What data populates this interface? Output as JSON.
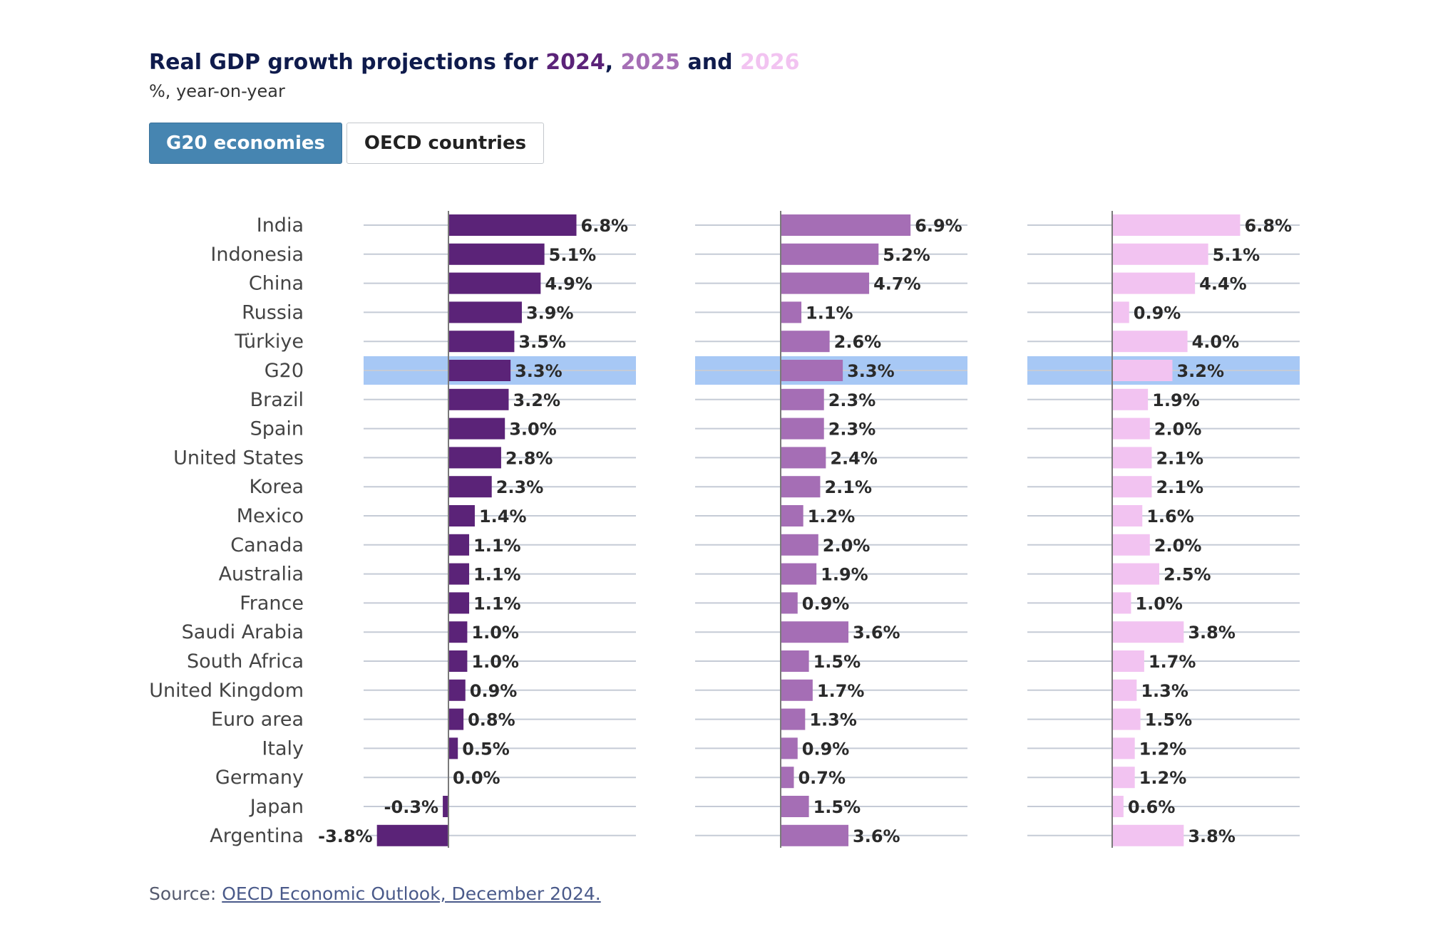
{
  "header": {
    "title_prefix": "Real GDP growth projections for ",
    "year1": "2024",
    "sep1": ", ",
    "year2": "2025",
    "sep2": " and ",
    "year3": "2026",
    "subtitle": "%, year-on-year"
  },
  "tabs": [
    {
      "label": "G20 economies",
      "active": true
    },
    {
      "label": "OECD countries",
      "active": false
    }
  ],
  "colors": {
    "title": "#0f1b4c",
    "year2024": "#5b2378",
    "year2025": "#a56eb5",
    "year2026": "#f2c3f1",
    "highlight": "#a7c8f5",
    "active_tab": "#4685b1"
  },
  "source": {
    "prefix": "Source: ",
    "link_text": "OECD Economic Outlook, December 2024."
  },
  "chart_data": {
    "type": "bar",
    "orientation": "horizontal",
    "highlighted_category": "G20",
    "value_suffix": "%",
    "categories": [
      "India",
      "Indonesia",
      "China",
      "Russia",
      "Türkiye",
      "G20",
      "Brazil",
      "Spain",
      "United States",
      "Korea",
      "Mexico",
      "Canada",
      "Australia",
      "France",
      "Saudi Arabia",
      "South Africa",
      "United Kingdom",
      "Euro area",
      "Italy",
      "Germany",
      "Japan",
      "Argentina"
    ],
    "series": [
      {
        "name": "2024",
        "color": "#5b2378",
        "values": [
          6.8,
          5.1,
          4.9,
          3.9,
          3.5,
          3.3,
          3.2,
          3.0,
          2.8,
          2.3,
          1.4,
          1.1,
          1.1,
          1.1,
          1.0,
          1.0,
          0.9,
          0.8,
          0.5,
          0.0,
          -0.3,
          -3.8
        ]
      },
      {
        "name": "2025",
        "color": "#a56eb5",
        "values": [
          6.9,
          5.2,
          4.7,
          1.1,
          2.6,
          3.3,
          2.3,
          2.3,
          2.4,
          2.1,
          1.2,
          2.0,
          1.9,
          0.9,
          3.6,
          1.5,
          1.7,
          1.3,
          0.9,
          0.7,
          1.5,
          3.6
        ]
      },
      {
        "name": "2026",
        "color": "#f2c3f1",
        "values": [
          6.8,
          5.1,
          4.4,
          0.9,
          4.0,
          3.2,
          1.9,
          2.0,
          2.1,
          2.1,
          1.6,
          2.0,
          2.5,
          1.0,
          3.8,
          1.7,
          1.3,
          1.5,
          1.2,
          1.2,
          0.6,
          3.8
        ]
      }
    ]
  }
}
